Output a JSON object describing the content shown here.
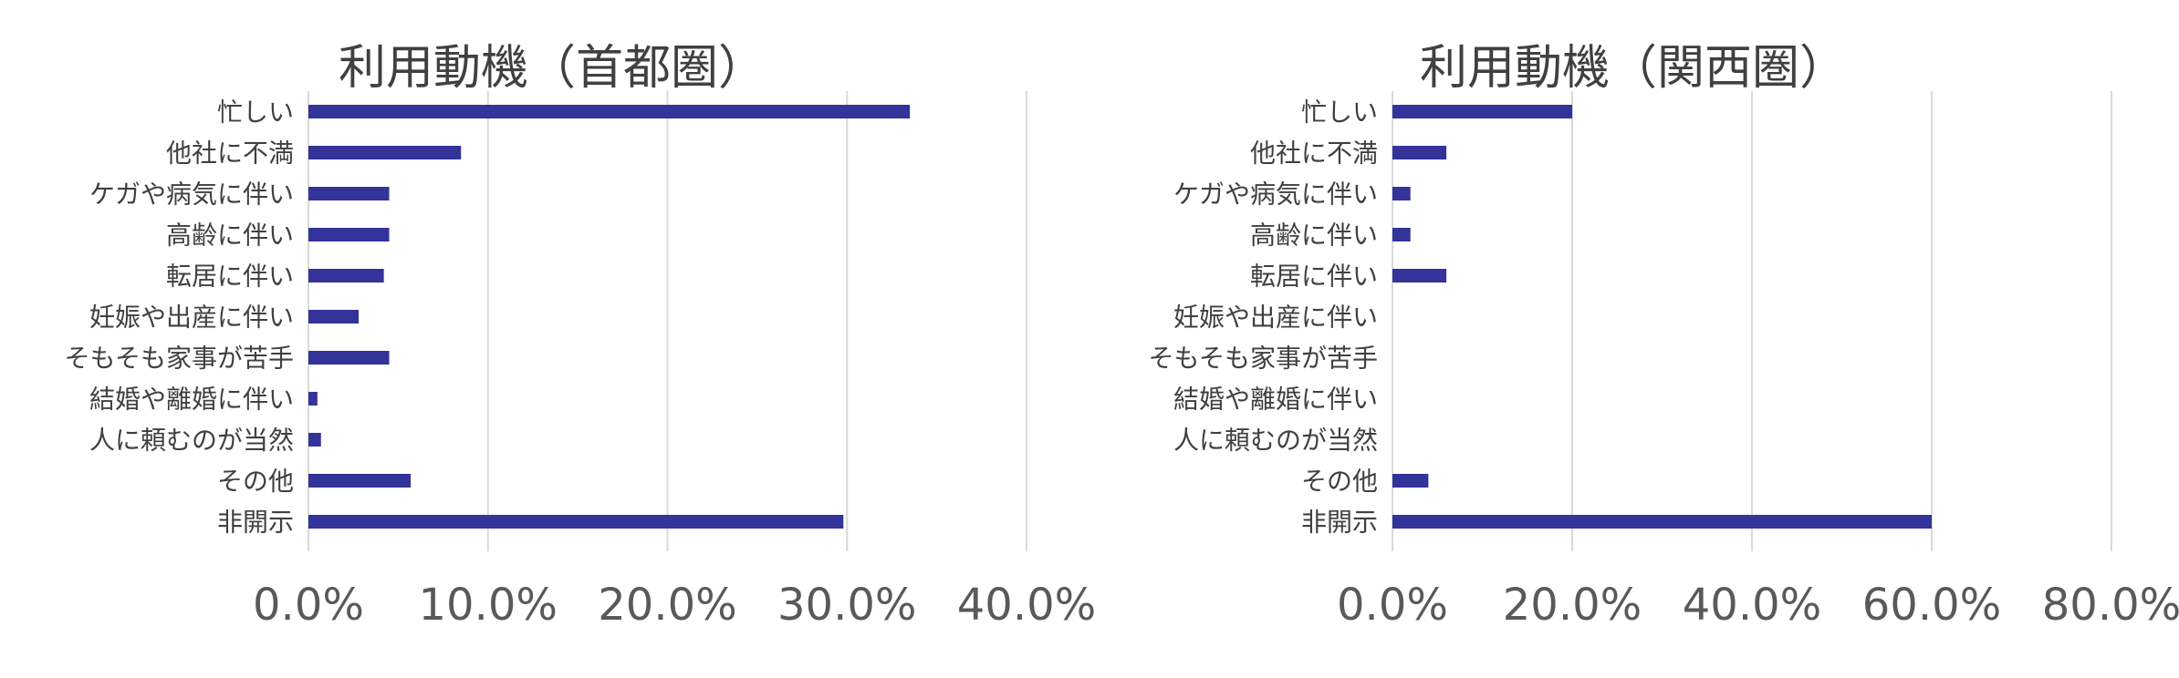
{
  "chart_data": [
    {
      "type": "bar",
      "orientation": "horizontal",
      "title": "利用動機（首都圏）",
      "categories": [
        "忙しい",
        "他社に不満",
        "ケガや病気に伴い",
        "高齢に伴い",
        "転居に伴い",
        "妊娠や出産に伴い",
        "そもそも家事が苦手",
        "結婚や離婚に伴い",
        "人に頼むのが当然",
        "その他",
        "非開示"
      ],
      "values": [
        33.5,
        8.5,
        4.5,
        4.5,
        4.2,
        2.8,
        4.5,
        0.5,
        0.7,
        5.7,
        29.8
      ],
      "xlim": [
        0,
        40
      ],
      "xticks": [
        "0.0%",
        "10.0%",
        "20.0%",
        "30.0%",
        "40.0%"
      ],
      "grid": true,
      "legend": "none",
      "bar_color": "#333399"
    },
    {
      "type": "bar",
      "orientation": "horizontal",
      "title": "利用動機（関西圏）",
      "categories": [
        "忙しい",
        "他社に不満",
        "ケガや病気に伴い",
        "高齢に伴い",
        "転居に伴い",
        "妊娠や出産に伴い",
        "そもそも家事が苦手",
        "結婚や離婚に伴い",
        "人に頼むのが当然",
        "その他",
        "非開示"
      ],
      "values": [
        20.0,
        6.0,
        2.0,
        2.0,
        6.0,
        0,
        0,
        0,
        0,
        4.0,
        60.0
      ],
      "xlim": [
        0,
        80
      ],
      "xticks": [
        "0.0%",
        "20.0%",
        "40.0%",
        "60.0%",
        "80.0%"
      ],
      "grid": true,
      "legend": "none",
      "bar_color": "#333399"
    }
  ]
}
